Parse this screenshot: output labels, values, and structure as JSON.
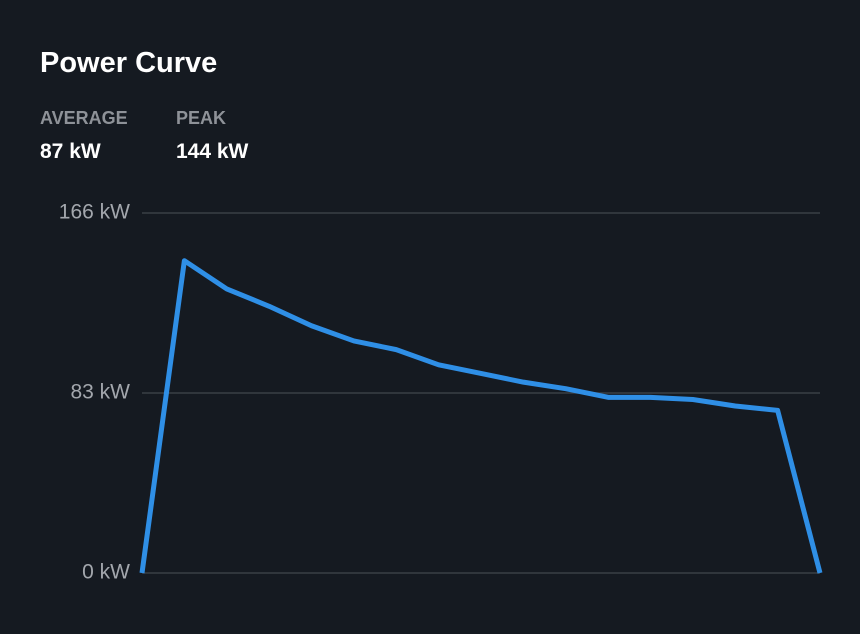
{
  "chart_data": {
    "type": "line",
    "title": "Power Curve",
    "stats": [
      {
        "label": "AVERAGE",
        "value": "87 kW"
      },
      {
        "label": "PEAK",
        "value": "144 kW"
      }
    ],
    "series": [
      {
        "color": "#2f8fe6",
        "values": [
          0,
          144,
          131,
          123,
          114,
          107,
          103,
          96,
          92,
          88,
          85,
          81,
          81,
          80,
          77,
          75,
          0
        ]
      }
    ],
    "ylim": [
      0,
      166
    ],
    "yticks": [
      {
        "value": 0,
        "label": "0 kW"
      },
      {
        "value": 83,
        "label": "83 kW"
      },
      {
        "value": 166,
        "label": "166 kW"
      }
    ],
    "grid": true
  }
}
